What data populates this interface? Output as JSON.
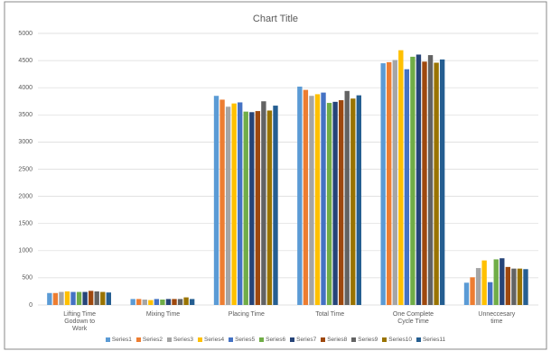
{
  "chart_data": {
    "type": "bar",
    "title": "Chart Title",
    "categories": [
      "Lifting Time Godown to Work",
      "Mixing Time",
      "Placing Time",
      "Total Time",
      "One Complete Cycle Time",
      "Unneccesary time"
    ],
    "ylim": [
      0,
      5000
    ],
    "yticks": [
      0,
      500,
      1000,
      1500,
      2000,
      2500,
      3000,
      3500,
      4000,
      4500,
      5000
    ],
    "grid": true,
    "legend": "bottom",
    "series": [
      {
        "name": "Series1",
        "color": "#5b9bd5",
        "values": [
          220,
          110,
          3850,
          4020,
          4450,
          410
        ]
      },
      {
        "name": "Series2",
        "color": "#ed7d31",
        "values": [
          220,
          110,
          3780,
          3960,
          4470,
          510
        ]
      },
      {
        "name": "Series3",
        "color": "#a5a5a5",
        "values": [
          240,
          100,
          3650,
          3850,
          4510,
          680
        ]
      },
      {
        "name": "Series4",
        "color": "#ffc000",
        "values": [
          250,
          90,
          3710,
          3880,
          4690,
          820
        ]
      },
      {
        "name": "Series5",
        "color": "#4472c4",
        "values": [
          240,
          110,
          3730,
          3910,
          4340,
          420
        ]
      },
      {
        "name": "Series6",
        "color": "#70ad47",
        "values": [
          240,
          100,
          3560,
          3720,
          4570,
          840
        ]
      },
      {
        "name": "Series7",
        "color": "#264478",
        "values": [
          240,
          110,
          3550,
          3740,
          4610,
          860
        ]
      },
      {
        "name": "Series8",
        "color": "#9e480e",
        "values": [
          260,
          110,
          3570,
          3770,
          4480,
          700
        ]
      },
      {
        "name": "Series9",
        "color": "#636363",
        "values": [
          250,
          110,
          3750,
          3940,
          4600,
          670
        ]
      },
      {
        "name": "Series10",
        "color": "#997300",
        "values": [
          240,
          140,
          3580,
          3800,
          4460,
          670
        ]
      },
      {
        "name": "Series11",
        "color": "#255e91",
        "values": [
          230,
          110,
          3670,
          3860,
          4520,
          660
        ]
      }
    ]
  }
}
